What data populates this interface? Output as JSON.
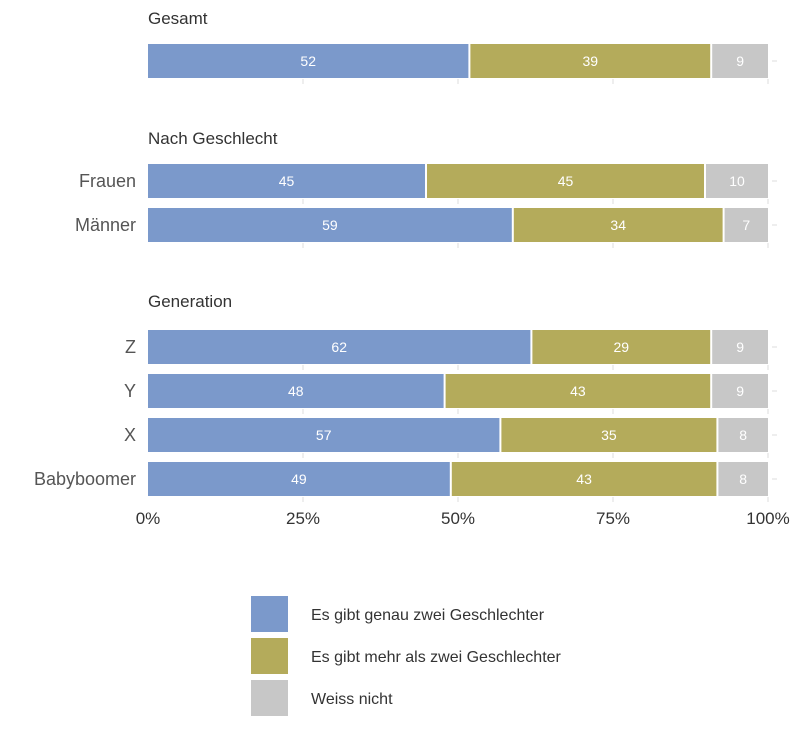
{
  "chart_data": {
    "type": "bar",
    "stacked": true,
    "orientation": "horizontal",
    "xlim": [
      0,
      100
    ],
    "x_ticks": [
      "0%",
      "25%",
      "50%",
      "75%",
      "100%"
    ],
    "series": [
      {
        "name": "Es gibt genau zwei Geschlechter",
        "color": "#7b99cb"
      },
      {
        "name": "Es gibt mehr als zwei Geschlechter",
        "color": "#b4ab5b"
      },
      {
        "name": "Weiss nicht",
        "color": "#c7c7c7"
      }
    ],
    "groups": [
      {
        "title": "Gesamt",
        "rows": [
          {
            "label": "",
            "values": [
              52,
              39,
              9
            ]
          }
        ]
      },
      {
        "title": "Nach Geschlecht",
        "rows": [
          {
            "label": "Frauen",
            "values": [
              45,
              45,
              10
            ]
          },
          {
            "label": "Männer",
            "values": [
              59,
              34,
              7
            ]
          }
        ]
      },
      {
        "title": "Generation",
        "rows": [
          {
            "label": "Z",
            "values": [
              62,
              29,
              9
            ]
          },
          {
            "label": "Y",
            "values": [
              48,
              43,
              9
            ]
          },
          {
            "label": "X",
            "values": [
              57,
              35,
              8
            ]
          },
          {
            "label": "Babyboomer",
            "values": [
              49,
              43,
              8
            ]
          }
        ]
      }
    ],
    "legend_position": "bottom"
  }
}
